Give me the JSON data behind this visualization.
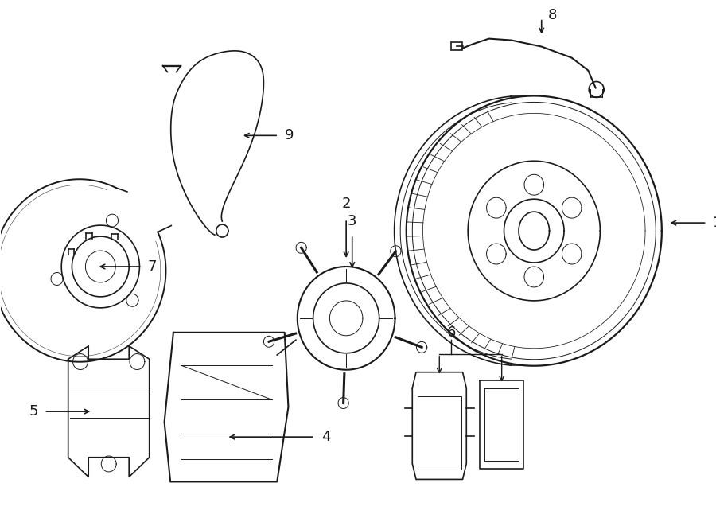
{
  "bg_color": "#ffffff",
  "line_color": "#1a1a1a",
  "lw": 1.2,
  "tlw": 0.7,
  "label_fs": 13,
  "fig_w": 9.0,
  "fig_h": 6.61
}
